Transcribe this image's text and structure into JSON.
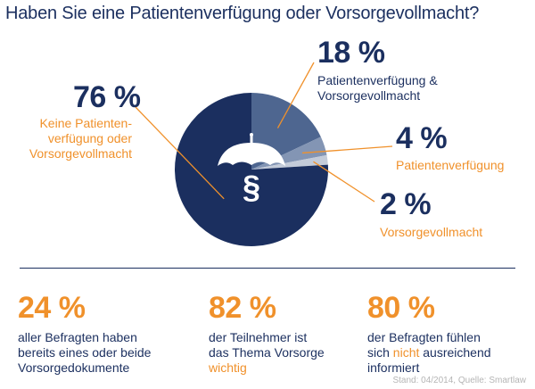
{
  "title": "Haben Sie eine Patientenverfügung oder Vorsorgevollmacht?",
  "colors": {
    "navy": "#1b2f5f",
    "orange": "#f0912b",
    "slice_18": "#4e6690",
    "slice_4": "#8395b4",
    "slice_2": "#c3cbd9"
  },
  "chart_data": {
    "type": "pie",
    "title": "Haben Sie eine Patientenverfügung oder Vorsorgevollmacht?",
    "slices": [
      {
        "label": "Keine Patientenverfügung oder Vorsorgevollmacht",
        "value": 76,
        "value_label": "76 %"
      },
      {
        "label": "Patientenverfügung & Vorsorgevollmacht",
        "value": 18,
        "value_label": "18 %"
      },
      {
        "label": "Patientenverfügung",
        "value": 4,
        "value_label": "4 %"
      },
      {
        "label": "Vorsorgevollmacht",
        "value": 2,
        "value_label": "2 %"
      }
    ],
    "center_icon": "umbrella-paragraph-icon",
    "center_symbol": "§"
  },
  "labels": {
    "l76_value": "76 %",
    "l76_line1": "Keine Patienten-",
    "l76_line2": "verfügung oder",
    "l76_line3": "Vorsorgevollmacht",
    "l18_value": "18 %",
    "l18_line1": "Patientenverfügung &",
    "l18_line2": "Vorsorgevollmacht",
    "l4_value": "4 %",
    "l4_line1": "Patientenverfügung",
    "l2_value": "2 %",
    "l2_line1": "Vorsorgevollmacht"
  },
  "stats": [
    {
      "value": "24 %",
      "line1": "aller Befragten haben",
      "line2": "bereits eines oder beide",
      "line3_pre": "Vorsorgedokumente",
      "line3_hl": ""
    },
    {
      "value": "82 %",
      "line1": "der Teilnehmer ist",
      "line2": "das Thema Vorsorge",
      "line3_pre": "",
      "line3_hl": "wichtig"
    },
    {
      "value": "80 %",
      "line1": "der Befragten fühlen",
      "line2_pre": "sich ",
      "line2_hl": "nicht",
      "line2_post": " ausreichend",
      "line3_pre": "informiert",
      "line3_hl": ""
    }
  ],
  "source": "Stand: 04/2014, Quelle: Smartlaw"
}
